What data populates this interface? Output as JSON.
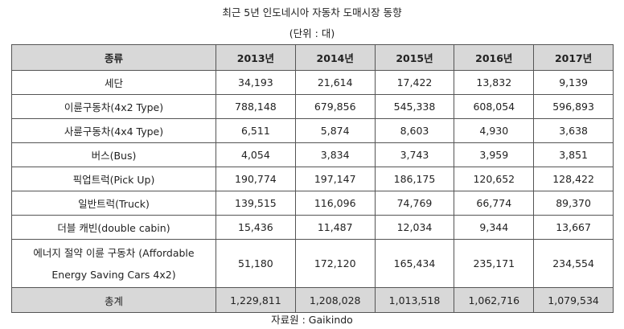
{
  "title": "최근 5년 인도네시아 자동차 도매시장 동향",
  "unit": "(단위 : 대)",
  "table": {
    "headers": [
      "종류",
      "2013년",
      "2014년",
      "2015년",
      "2016년",
      "2017년"
    ],
    "rows": [
      {
        "label": "세단",
        "values": [
          "34,193",
          "21,614",
          "17,422",
          "13,832",
          "9,139"
        ]
      },
      {
        "label": "이륜구동차(4x2 Type)",
        "values": [
          "788,148",
          "679,856",
          "545,338",
          "608,054",
          "596,893"
        ]
      },
      {
        "label": "사륜구동차(4x4 Type)",
        "values": [
          "6,511",
          "5,874",
          "8,603",
          "4,930",
          "3,638"
        ]
      },
      {
        "label": "버스(Bus)",
        "values": [
          "4,054",
          "3,834",
          "3,743",
          "3,959",
          "3,851"
        ]
      },
      {
        "label": "픽업트럭(Pick Up)",
        "values": [
          "190,774",
          "197,147",
          "186,175",
          "120,652",
          "128,422"
        ]
      },
      {
        "label": "일반트럭(Truck)",
        "values": [
          "139,515",
          "116,096",
          "74,769",
          "66,774",
          "89,370"
        ]
      },
      {
        "label": "더블 캐빈(double cabin)",
        "values": [
          "15,436",
          "11,487",
          "12,034",
          "9,344",
          "13,667"
        ]
      },
      {
        "label": "에너지 절약 이륜 구동차 (Affordable Energy Saving Cars 4x2)",
        "values": [
          "51,180",
          "172,120",
          "165,434",
          "235,171",
          "234,554"
        ]
      }
    ],
    "total": {
      "label": "총계",
      "values": [
        "1,229,811",
        "1,208,028",
        "1,013,518",
        "1,062,716",
        "1,079,534"
      ]
    }
  },
  "source": "자료원 : Gaikindo"
}
